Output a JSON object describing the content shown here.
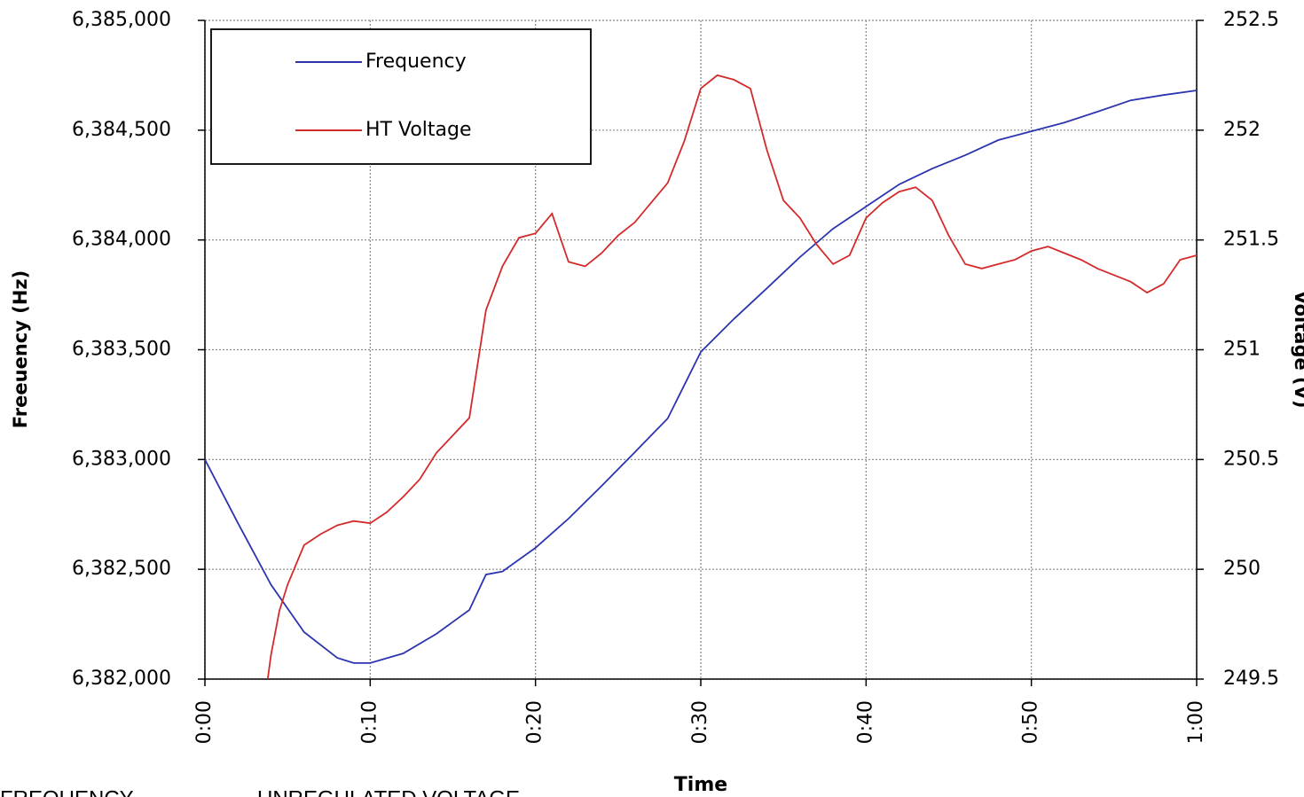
{
  "chart_data": {
    "type": "line",
    "x_label": "Time",
    "y_label": "Freeuency (Hz)",
    "y2_label": "Voltage (V)",
    "caption": [
      "FREQUENCY",
      "UNREGULATED VOLTAGE"
    ],
    "xlim": [
      0,
      60
    ],
    "xticks": [
      {
        "value": 0,
        "label": "0:00"
      },
      {
        "value": 10,
        "label": "0:10"
      },
      {
        "value": 20,
        "label": "0:20"
      },
      {
        "value": 30,
        "label": "0:30"
      },
      {
        "value": 40,
        "label": "0:40"
      },
      {
        "value": 50,
        "label": "0:50"
      },
      {
        "value": 60,
        "label": "1:00"
      }
    ],
    "ylim": [
      6382000,
      6385000
    ],
    "yticks": [
      {
        "value": 6382000,
        "label": "6,382,000"
      },
      {
        "value": 6382500,
        "label": "6,382,500"
      },
      {
        "value": 6383000,
        "label": "6,383,000"
      },
      {
        "value": 6383500,
        "label": "6,383,500"
      },
      {
        "value": 6384000,
        "label": "6,384,000"
      },
      {
        "value": 6384500,
        "label": "6,384,500"
      },
      {
        "value": 6385000,
        "label": "6,385,000"
      }
    ],
    "y2lim": [
      249.5,
      252.5
    ],
    "y2ticks": [
      249.5,
      250,
      250.5,
      251,
      251.5,
      252,
      252.5
    ],
    "grid": true,
    "legend": "upper left",
    "series": [
      {
        "name": "Frequency",
        "color": "#2b35b0",
        "x": [
          0,
          2,
          4,
          6,
          8,
          9,
          10,
          12,
          14,
          16,
          17,
          18,
          20,
          22,
          24,
          26,
          28,
          30,
          32,
          34,
          36,
          38,
          40,
          42,
          44,
          46,
          48,
          50,
          52,
          54,
          56,
          58,
          60
        ],
        "values": [
          6383000,
          6382710,
          6382430,
          6382214,
          6382097,
          6382073,
          6382073,
          6382117,
          6382206,
          6382315,
          6382476,
          6382490,
          6382598,
          6382731,
          6382880,
          6383033,
          6383187,
          6383490,
          6383640,
          6383780,
          6383922,
          6384051,
          6384152,
          6384253,
          6384325,
          6384386,
          6384455,
          6384495,
          6384535,
          6384584,
          6384636,
          6384660,
          6384681
        ]
      },
      {
        "name": "HT Voltage",
        "color": "#d42a2a",
        "axis": "y2",
        "x": [
          3.8,
          4,
          4.5,
          5,
          6,
          7,
          8,
          9,
          10,
          11,
          12,
          13,
          14,
          15,
          16,
          17,
          18,
          19,
          20,
          21,
          22,
          23,
          24,
          25,
          26,
          27,
          28,
          29,
          30,
          31,
          32,
          33,
          34,
          35,
          36,
          37,
          38,
          39,
          40,
          41,
          42,
          43,
          44,
          45,
          46,
          47,
          48,
          49,
          50,
          51,
          52,
          53,
          54,
          55,
          56,
          57,
          58,
          59,
          60
        ],
        "values": [
          249.5,
          249.61,
          249.81,
          249.93,
          250.11,
          250.16,
          250.2,
          250.22,
          250.21,
          250.26,
          250.33,
          250.41,
          250.53,
          250.61,
          250.69,
          251.18,
          251.38,
          251.51,
          251.53,
          251.62,
          251.4,
          251.38,
          251.44,
          251.52,
          251.58,
          251.67,
          251.76,
          251.95,
          252.19,
          252.25,
          252.23,
          252.19,
          251.91,
          251.68,
          251.6,
          251.48,
          251.39,
          251.43,
          251.6,
          251.67,
          251.72,
          251.74,
          251.68,
          251.52,
          251.39,
          251.37,
          251.39,
          251.41,
          251.45,
          251.47,
          251.44,
          251.41,
          251.37,
          251.34,
          251.31,
          251.26,
          251.3,
          251.41,
          251.43
        ]
      }
    ]
  }
}
